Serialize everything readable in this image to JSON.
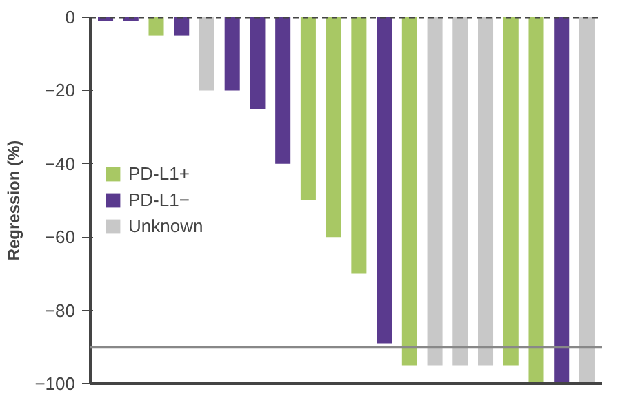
{
  "chart_data": {
    "type": "bar",
    "ylabel": "Regression (%)",
    "categories": [
      null,
      null,
      null,
      null,
      null,
      null,
      null,
      null,
      null,
      null,
      null,
      null,
      null,
      null,
      null,
      null,
      null,
      null,
      null,
      null
    ],
    "series": [
      {
        "name": "PD-L1+",
        "color": "#a8c864",
        "values": [
          null,
          null,
          -5,
          null,
          null,
          null,
          null,
          null,
          -50,
          -60,
          -70,
          null,
          -95,
          null,
          null,
          null,
          -95,
          -100,
          null,
          null
        ]
      },
      {
        "name": "PD-L1−",
        "color": "#5a3a8e",
        "values": [
          -1,
          -1,
          null,
          -5,
          null,
          -20,
          -25,
          -40,
          null,
          null,
          null,
          -89,
          null,
          null,
          null,
          null,
          null,
          null,
          -100,
          null
        ]
      },
      {
        "name": "Unknown",
        "color": "#c8c8c8",
        "values": [
          null,
          null,
          null,
          null,
          -20,
          null,
          null,
          null,
          null,
          null,
          null,
          null,
          null,
          -95,
          -95,
          -95,
          null,
          null,
          null,
          -100
        ]
      }
    ],
    "ylim": [
      -100,
      0
    ],
    "yticks": [
      {
        "value": -100,
        "label": "−100"
      },
      {
        "value": -80,
        "label": "−80"
      },
      {
        "value": -60,
        "label": "−60"
      },
      {
        "value": -40,
        "label": "−40"
      },
      {
        "value": -20,
        "label": "−20"
      },
      0
    ],
    "ref_lines": [
      {
        "axis": "y",
        "value": 0,
        "color": "#444444",
        "line_style": "dashed"
      },
      {
        "axis": "y",
        "value": -90,
        "color": "#888888",
        "line_style": "solid"
      }
    ],
    "legend": "left",
    "grid": false
  }
}
